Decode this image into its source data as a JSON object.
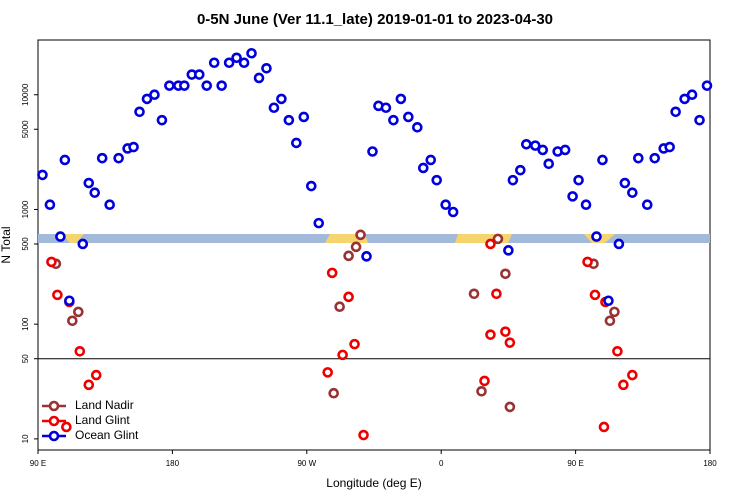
{
  "chart_data": {
    "type": "scatter",
    "title": "0-5N June (Ver 11.1_late)   2019-01-01 to 2023-04-30",
    "xlabel": "Longitude (deg E)",
    "ylabel": "N Total",
    "xlim": [
      90,
      540
    ],
    "xticks": [
      {
        "value": 90,
        "label": "90 E"
      },
      180,
      {
        "value": 270,
        "label": "90 W"
      },
      {
        "value": 360,
        "label": "0"
      },
      {
        "value": 450,
        "label": "90 E"
      },
      {
        "value": 540,
        "label": "180"
      }
    ],
    "ylim": [
      8,
      30000
    ],
    "yticks": [
      10,
      50,
      100,
      500,
      1000,
      5000,
      10000
    ],
    "log_y": true,
    "hline": 50,
    "legend": "lower left",
    "series": [
      {
        "name": "Land Nadir",
        "color": "#993333",
        "x": [
          102,
          113,
          117,
          288,
          292,
          298,
          303,
          306,
          382,
          387,
          398,
          403,
          406,
          462,
          473,
          476
        ],
        "values": [
          336,
          107,
          128,
          25,
          142,
          394,
          472,
          601,
          184,
          26,
          554,
          275,
          19,
          336,
          107,
          128
        ]
      },
      {
        "name": "Land Glint",
        "color": "#ee0000",
        "x": [
          99,
          103,
          109,
          111,
          118,
          124,
          129,
          284,
          287,
          294,
          298,
          302,
          308,
          389,
          393,
          393,
          397,
          403,
          406,
          458,
          463,
          469,
          470,
          478,
          482,
          488
        ],
        "values": [
          349,
          180,
          12.7,
          156,
          58,
          29.6,
          36,
          38,
          280,
          54,
          173,
          67,
          10.8,
          32,
          81,
          500,
          184,
          86,
          69,
          349,
          180,
          12.7,
          156,
          58,
          29.6,
          36
        ]
      },
      {
        "name": "Ocean Glint",
        "color": "#0000dd",
        "x": [
          93,
          98,
          105,
          108,
          111,
          120,
          124,
          128,
          133,
          138,
          144,
          150,
          154,
          158,
          163,
          168,
          173,
          178,
          184,
          188,
          193,
          198,
          203,
          208,
          213,
          218,
          223,
          228,
          233,
          238,
          243,
          248,
          253,
          258,
          263,
          268,
          273,
          278,
          310,
          314,
          318,
          323,
          328,
          333,
          338,
          344,
          348,
          353,
          357,
          363,
          368,
          405,
          408,
          413,
          417,
          423,
          428,
          432,
          438,
          443,
          448,
          452,
          457,
          464,
          468,
          472,
          479,
          483,
          488,
          492,
          498,
          503,
          509,
          513,
          517,
          523,
          528,
          533,
          538
        ],
        "values": [
          2000,
          1100,
          580,
          2700,
          160,
          500,
          1700,
          1400,
          2800,
          1100,
          2800,
          3400,
          3500,
          7100,
          9200,
          10000,
          6000,
          12000,
          12000,
          12000,
          15000,
          15000,
          12000,
          19000,
          12000,
          19000,
          21000,
          19000,
          23000,
          14000,
          17000,
          7700,
          9200,
          6000,
          3800,
          6400,
          1600,
          760,
          390,
          3200,
          8000,
          7700,
          6000,
          9200,
          6400,
          5200,
          2300,
          2700,
          1800,
          1100,
          950,
          440,
          1800,
          2200,
          3700,
          3600,
          3300,
          2500,
          3200,
          3300,
          1300,
          1800,
          1100,
          580,
          2700,
          160,
          500,
          1700,
          1400,
          2800,
          1100,
          2800,
          3400,
          3500,
          7100,
          9200,
          10000,
          6000,
          12000
        ]
      }
    ]
  }
}
